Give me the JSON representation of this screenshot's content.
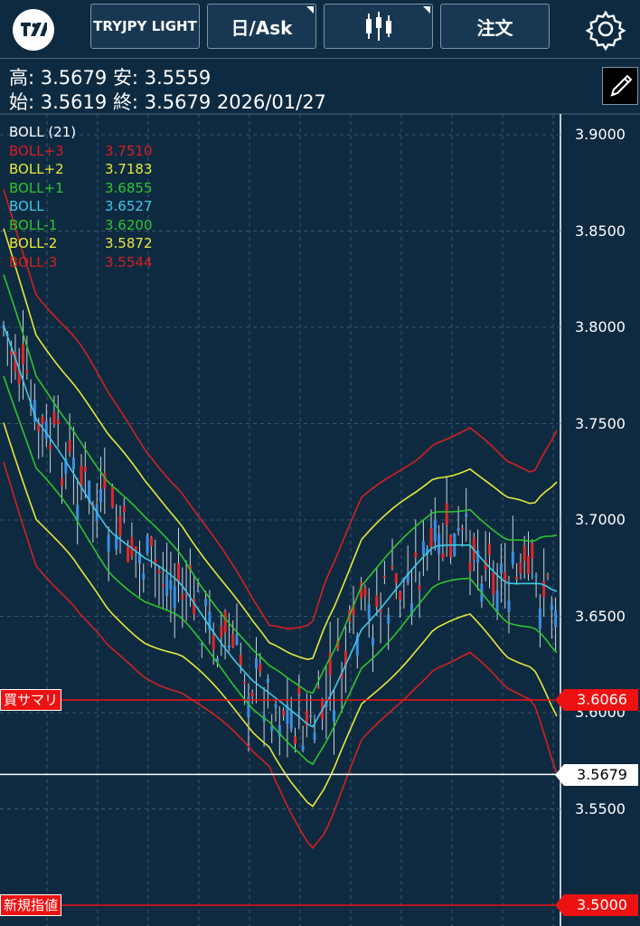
{
  "toolbar": {
    "symbol_label": "TRYJPY LIGHT",
    "timeframe_label": "日/Ask",
    "order_label": "注文"
  },
  "ohlc": {
    "high_label": "高:",
    "high_value": "3.5679",
    "low_label": "安:",
    "low_value": "3.5559",
    "open_label": "始:",
    "open_value": "3.5619",
    "close_label": "終:",
    "close_value": "3.5679",
    "date": "2026/01/27"
  },
  "legend": {
    "title": "BOLL (21)",
    "items": [
      {
        "name": "BOLL+3",
        "value": "3.7510",
        "color": "#d42121"
      },
      {
        "name": "BOLL+2",
        "value": "3.7183",
        "color": "#e8e83a"
      },
      {
        "name": "BOLL+1",
        "value": "3.6855",
        "color": "#2ec42e"
      },
      {
        "name": "BOLL",
        "value": "3.6527",
        "color": "#3ec9e8"
      },
      {
        "name": "BOLL-1",
        "value": "3.6200",
        "color": "#2ec42e"
      },
      {
        "name": "BOLL-2",
        "value": "3.5872",
        "color": "#e8e83a"
      },
      {
        "name": "BOLL-3",
        "value": "3.5544",
        "color": "#d42121"
      }
    ]
  },
  "axis": {
    "ticks": [
      "3.9000",
      "3.8500",
      "3.8000",
      "3.7500",
      "3.7000",
      "3.6500",
      "3.6000",
      "3.5500"
    ]
  },
  "price_lines": {
    "position": {
      "label": "買サマリ",
      "value": "3.6066"
    },
    "current": {
      "value": "3.5679"
    },
    "new_order": {
      "label": "新規指値",
      "value": "3.5000"
    }
  },
  "colors": {
    "background": "#0e2a40",
    "up_candle": "#e02828",
    "down_candle": "#3b8fe0",
    "grid": "#3b5670"
  }
}
